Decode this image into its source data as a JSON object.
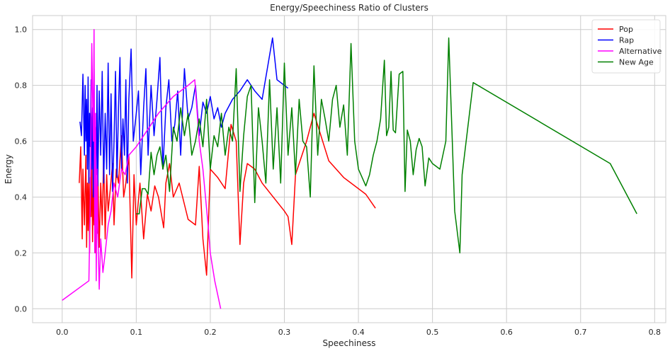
{
  "chart_data": {
    "type": "line",
    "title": "Energy/Speechiness Ratio of Clusters",
    "xlabel": "Speechiness",
    "ylabel": "Energy",
    "xlim": [
      -0.04,
      0.815
    ],
    "ylim": [
      -0.05,
      1.05
    ],
    "xticks": [
      0.0,
      0.1,
      0.2,
      0.3,
      0.4,
      0.5,
      0.6,
      0.7,
      0.8
    ],
    "xtick_labels": [
      "0.0",
      "0.1",
      "0.2",
      "0.3",
      "0.4",
      "0.5",
      "0.6",
      "0.7",
      "0.8"
    ],
    "yticks": [
      0.0,
      0.2,
      0.4,
      0.6,
      0.8,
      1.0
    ],
    "ytick_labels": [
      "0.0",
      "0.2",
      "0.4",
      "0.6",
      "0.8",
      "1.0"
    ],
    "grid": true,
    "legend_position": "top-right",
    "series": [
      {
        "name": "Pop",
        "color": "#ff0000",
        "x": [
          0.023,
          0.025,
          0.027,
          0.028,
          0.03,
          0.031,
          0.032,
          0.033,
          0.034,
          0.035,
          0.036,
          0.037,
          0.038,
          0.039,
          0.04,
          0.041,
          0.042,
          0.043,
          0.044,
          0.045,
          0.046,
          0.047,
          0.048,
          0.05,
          0.052,
          0.054,
          0.056,
          0.058,
          0.06,
          0.062,
          0.065,
          0.068,
          0.07,
          0.073,
          0.076,
          0.08,
          0.083,
          0.086,
          0.09,
          0.094,
          0.097,
          0.1,
          0.105,
          0.11,
          0.115,
          0.12,
          0.125,
          0.13,
          0.137,
          0.14,
          0.145,
          0.15,
          0.158,
          0.17,
          0.18,
          0.185,
          0.19,
          0.195,
          0.2,
          0.21,
          0.22,
          0.228,
          0.235,
          0.24,
          0.245,
          0.25,
          0.26,
          0.27,
          0.3,
          0.305,
          0.31,
          0.315,
          0.33,
          0.34,
          0.36,
          0.38,
          0.41,
          0.423
        ],
        "y": [
          0.45,
          0.58,
          0.25,
          0.5,
          0.3,
          0.42,
          0.55,
          0.22,
          0.45,
          0.28,
          0.5,
          0.2,
          0.47,
          0.33,
          0.52,
          0.24,
          0.43,
          0.3,
          0.56,
          0.2,
          0.4,
          0.27,
          0.5,
          0.22,
          0.45,
          0.3,
          0.55,
          0.25,
          0.48,
          0.35,
          0.43,
          0.52,
          0.3,
          0.5,
          0.45,
          0.62,
          0.4,
          0.45,
          0.55,
          0.11,
          0.48,
          0.3,
          0.45,
          0.25,
          0.41,
          0.35,
          0.44,
          0.4,
          0.29,
          0.45,
          0.52,
          0.4,
          0.45,
          0.32,
          0.3,
          0.51,
          0.25,
          0.12,
          0.5,
          0.47,
          0.43,
          0.66,
          0.6,
          0.23,
          0.45,
          0.52,
          0.5,
          0.45,
          0.35,
          0.33,
          0.23,
          0.48,
          0.6,
          0.7,
          0.53,
          0.47,
          0.41,
          0.36
        ]
      },
      {
        "name": "Rap",
        "color": "#0000ff",
        "x": [
          0.024,
          0.026,
          0.028,
          0.03,
          0.031,
          0.032,
          0.033,
          0.034,
          0.035,
          0.036,
          0.037,
          0.038,
          0.039,
          0.04,
          0.041,
          0.042,
          0.043,
          0.044,
          0.045,
          0.046,
          0.047,
          0.048,
          0.05,
          0.052,
          0.054,
          0.056,
          0.058,
          0.06,
          0.062,
          0.064,
          0.066,
          0.068,
          0.07,
          0.072,
          0.074,
          0.076,
          0.078,
          0.08,
          0.082,
          0.084,
          0.086,
          0.088,
          0.09,
          0.093,
          0.096,
          0.1,
          0.103,
          0.106,
          0.11,
          0.113,
          0.116,
          0.12,
          0.124,
          0.128,
          0.132,
          0.136,
          0.14,
          0.144,
          0.148,
          0.152,
          0.156,
          0.16,
          0.165,
          0.17,
          0.175,
          0.18,
          0.185,
          0.19,
          0.195,
          0.2,
          0.205,
          0.21,
          0.215,
          0.22,
          0.23,
          0.24,
          0.25,
          0.26,
          0.27,
          0.284,
          0.29,
          0.305
        ],
        "y": [
          0.67,
          0.62,
          0.84,
          0.55,
          0.8,
          0.6,
          0.75,
          0.5,
          0.83,
          0.45,
          0.7,
          0.58,
          0.82,
          0.5,
          0.72,
          0.4,
          0.86,
          0.52,
          0.65,
          0.48,
          0.8,
          0.44,
          0.78,
          0.55,
          0.85,
          0.45,
          0.7,
          0.5,
          0.88,
          0.48,
          0.77,
          0.42,
          0.6,
          0.85,
          0.47,
          0.72,
          0.9,
          0.5,
          0.68,
          0.55,
          0.82,
          0.45,
          0.75,
          0.93,
          0.6,
          0.7,
          0.78,
          0.48,
          0.72,
          0.86,
          0.55,
          0.8,
          0.62,
          0.75,
          0.9,
          0.5,
          0.72,
          0.82,
          0.6,
          0.66,
          0.78,
          0.55,
          0.86,
          0.68,
          0.72,
          0.8,
          0.62,
          0.74,
          0.7,
          0.76,
          0.68,
          0.72,
          0.65,
          0.7,
          0.75,
          0.78,
          0.82,
          0.78,
          0.75,
          0.97,
          0.82,
          0.79
        ]
      },
      {
        "name": "Alternative",
        "color": "#ff00ff",
        "x": [
          0.0,
          0.036,
          0.038,
          0.04,
          0.042,
          0.043,
          0.044,
          0.045,
          0.046,
          0.047,
          0.048,
          0.05,
          0.052,
          0.055,
          0.058,
          0.062,
          0.066,
          0.07,
          0.075,
          0.08,
          0.085,
          0.09,
          0.1,
          0.11,
          0.12,
          0.13,
          0.14,
          0.15,
          0.16,
          0.17,
          0.179,
          0.185,
          0.19,
          0.197,
          0.2,
          0.206,
          0.214
        ],
        "y": [
          0.03,
          0.1,
          0.4,
          0.95,
          0.6,
          1.0,
          0.2,
          0.7,
          0.1,
          0.5,
          0.3,
          0.07,
          0.25,
          0.13,
          0.2,
          0.3,
          0.35,
          0.45,
          0.4,
          0.5,
          0.48,
          0.55,
          0.58,
          0.62,
          0.66,
          0.7,
          0.73,
          0.76,
          0.78,
          0.8,
          0.82,
          0.6,
          0.5,
          0.3,
          0.2,
          0.1,
          0.0
        ]
      },
      {
        "name": "New Age",
        "color": "#008000",
        "x": [
          0.1,
          0.104,
          0.108,
          0.112,
          0.116,
          0.12,
          0.124,
          0.128,
          0.132,
          0.136,
          0.14,
          0.145,
          0.15,
          0.155,
          0.16,
          0.165,
          0.17,
          0.175,
          0.18,
          0.185,
          0.19,
          0.195,
          0.2,
          0.205,
          0.21,
          0.215,
          0.22,
          0.225,
          0.23,
          0.235,
          0.24,
          0.245,
          0.25,
          0.255,
          0.26,
          0.265,
          0.27,
          0.275,
          0.28,
          0.285,
          0.29,
          0.295,
          0.3,
          0.305,
          0.31,
          0.315,
          0.32,
          0.325,
          0.33,
          0.335,
          0.34,
          0.345,
          0.35,
          0.355,
          0.36,
          0.365,
          0.37,
          0.375,
          0.38,
          0.385,
          0.39,
          0.395,
          0.4,
          0.405,
          0.41,
          0.415,
          0.42,
          0.425,
          0.43,
          0.435,
          0.438,
          0.441,
          0.444,
          0.447,
          0.45,
          0.455,
          0.46,
          0.463,
          0.466,
          0.47,
          0.474,
          0.478,
          0.482,
          0.486,
          0.49,
          0.495,
          0.5,
          0.51,
          0.518,
          0.522,
          0.53,
          0.537,
          0.54,
          0.555,
          0.74,
          0.776
        ],
        "y": [
          0.34,
          0.34,
          0.43,
          0.43,
          0.41,
          0.56,
          0.48,
          0.55,
          0.58,
          0.5,
          0.55,
          0.42,
          0.65,
          0.6,
          0.72,
          0.62,
          0.7,
          0.55,
          0.6,
          0.68,
          0.58,
          0.75,
          0.5,
          0.62,
          0.58,
          0.7,
          0.55,
          0.65,
          0.6,
          0.86,
          0.42,
          0.62,
          0.76,
          0.8,
          0.38,
          0.72,
          0.6,
          0.45,
          0.82,
          0.5,
          0.72,
          0.45,
          0.88,
          0.55,
          0.72,
          0.48,
          0.75,
          0.6,
          0.58,
          0.4,
          0.87,
          0.55,
          0.75,
          0.68,
          0.6,
          0.75,
          0.8,
          0.65,
          0.73,
          0.55,
          0.95,
          0.6,
          0.5,
          0.47,
          0.44,
          0.48,
          0.55,
          0.6,
          0.68,
          0.89,
          0.62,
          0.65,
          0.85,
          0.64,
          0.63,
          0.84,
          0.85,
          0.42,
          0.64,
          0.6,
          0.48,
          0.57,
          0.61,
          0.58,
          0.44,
          0.54,
          0.52,
          0.5,
          0.6,
          0.97,
          0.35,
          0.2,
          0.48,
          0.81,
          0.52,
          0.34
        ]
      }
    ]
  }
}
